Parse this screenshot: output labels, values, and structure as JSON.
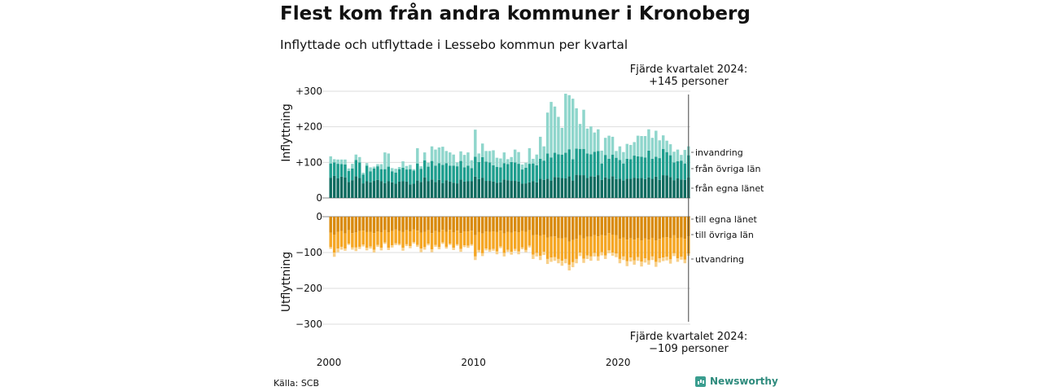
{
  "title": "Flest kom från andra kommuner i Kronoberg",
  "subtitle": "Inflyttade och utflyttade i Lessebo kommun per kvartal",
  "source": "Källa: SCB",
  "brand": "Newsworthy",
  "colors": {
    "in_egna": "#0d6b5f",
    "in_ovriga": "#1e9e8e",
    "in_invandring": "#8fd6cc",
    "out_egna": "#d98a0c",
    "out_ovriga": "#f5a623",
    "out_utvandring": "#f8d08a"
  },
  "chart_data": {
    "type": "bar",
    "stacked": true,
    "x_unit": "kvartal",
    "x_ticks": [
      "2000",
      "2010",
      "2020"
    ],
    "x_range": [
      "2000 Q1",
      "2024 Q4"
    ],
    "panels": [
      {
        "ylabel": "Inflyttning",
        "yticks": [
          "+300",
          "+200",
          "+100",
          "0"
        ],
        "ylim": [
          0,
          300
        ],
        "annotation_line1": "Fjärde kvartalet 2024:",
        "annotation_line2": "+145 personer",
        "last_value": 145,
        "series": [
          {
            "name": "från egna länet",
            "values": [
              57,
              62,
              55,
              60,
              58,
              45,
              50,
              61,
              56,
              41,
              47,
              44,
              48,
              51,
              47,
              42,
              47,
              44,
              40,
              46,
              47,
              46,
              38,
              40,
              49,
              45,
              58,
              47,
              52,
              45,
              51,
              42,
              50,
              46,
              43,
              41,
              52,
              46,
              47,
              47,
              60,
              53,
              57,
              48,
              48,
              46,
              43,
              44,
              52,
              50,
              48,
              48,
              46,
              40,
              41,
              44,
              47,
              44,
              54,
              51,
              54,
              49,
              59,
              58,
              56,
              55,
              61,
              49,
              65,
              64,
              64,
              56,
              61,
              60,
              64,
              51,
              58,
              54,
              61,
              53,
              54,
              49,
              54,
              54,
              57,
              55,
              56,
              53,
              58,
              54,
              60,
              51,
              64,
              63,
              59,
              50,
              55,
              52,
              51,
              58
            ]
          },
          {
            "name": "från övriga län",
            "values": [
              40,
              38,
              41,
              35,
              36,
              31,
              33,
              46,
              44,
              25,
              44,
              31,
              35,
              38,
              34,
              39,
              41,
              31,
              31,
              35,
              38,
              34,
              43,
              37,
              48,
              37,
              48,
              41,
              52,
              46,
              47,
              51,
              48,
              45,
              48,
              48,
              52,
              40,
              44,
              37,
              56,
              48,
              58,
              54,
              52,
              46,
              44,
              42,
              46,
              45,
              53,
              52,
              50,
              40,
              44,
              52,
              50,
              48,
              56,
              54,
              71,
              65,
              68,
              65,
              66,
              72,
              76,
              60,
              74,
              74,
              74,
              69,
              62,
              70,
              68,
              46,
              63,
              56,
              61,
              60,
              53,
              48,
              56,
              55,
              62,
              62,
              60,
              61,
              75,
              56,
              56,
              61,
              74,
              66,
              61,
              50,
              48,
              53,
              46,
              62
            ]
          },
          {
            "name": "invandring",
            "values": [
              20,
              9,
              12,
              13,
              14,
              7,
              13,
              15,
              15,
              5,
              7,
              11,
              5,
              6,
              14,
              47,
              37,
              9,
              11,
              6,
              18,
              10,
              12,
              4,
              43,
              7,
              22,
              11,
              41,
              45,
              44,
              51,
              34,
              37,
              31,
              11,
              27,
              35,
              37,
              22,
              76,
              24,
              38,
              30,
              32,
              42,
              26,
              25,
              30,
              14,
              14,
              36,
              33,
              14,
              14,
              44,
              13,
              30,
              62,
              40,
              115,
              156,
              130,
              105,
              75,
              166,
              152,
              170,
              113,
              70,
              110,
              70,
              78,
              54,
              61,
              36,
              48,
              65,
              50,
              19,
              38,
              32,
              42,
              40,
              38,
              58,
              58,
              60,
              60,
              59,
              73,
              50,
              38,
              32,
              31,
              30,
              33,
              16,
              38,
              25
            ]
          }
        ]
      },
      {
        "ylabel": "Utflyttning",
        "yticks": [
          "0",
          "−100",
          "−200",
          "−300"
        ],
        "ylim": [
          -300,
          0
        ],
        "annotation_line1": "Fjärde kvartalet 2024:",
        "annotation_line2": "−109 personer",
        "last_value": -109,
        "series": [
          {
            "name": "till egna länet",
            "values": [
              -45,
              -50,
              -42,
              -40,
              -47,
              -38,
              -46,
              -44,
              -40,
              -39,
              -43,
              -42,
              -46,
              -41,
              -44,
              -38,
              -44,
              -40,
              -36,
              -40,
              -43,
              -38,
              -41,
              -36,
              -39,
              -45,
              -42,
              -38,
              -46,
              -40,
              -43,
              -37,
              -42,
              -37,
              -44,
              -39,
              -46,
              -41,
              -41,
              -39,
              -51,
              -43,
              -47,
              -41,
              -42,
              -41,
              -43,
              -39,
              -47,
              -42,
              -45,
              -41,
              -44,
              -40,
              -42,
              -38,
              -52,
              -50,
              -54,
              -50,
              -58,
              -56,
              -55,
              -60,
              -61,
              -58,
              -70,
              -65,
              -62,
              -52,
              -61,
              -56,
              -56,
              -51,
              -55,
              -51,
              -53,
              -46,
              -50,
              -52,
              -62,
              -58,
              -64,
              -60,
              -64,
              -60,
              -66,
              -61,
              -64,
              -59,
              -66,
              -62,
              -58,
              -57,
              -60,
              -52,
              -60,
              -58,
              -62,
              -55
            ]
          },
          {
            "name": "till övriga län",
            "values": [
              -40,
              -50,
              -47,
              -44,
              -42,
              -37,
              -40,
              -42,
              -44,
              -39,
              -44,
              -41,
              -46,
              -38,
              -43,
              -34,
              -43,
              -40,
              -38,
              -36,
              -44,
              -39,
              -41,
              -35,
              -40,
              -44,
              -43,
              -37,
              -45,
              -39,
              -42,
              -35,
              -42,
              -38,
              -43,
              -38,
              -44,
              -39,
              -40,
              -38,
              -60,
              -50,
              -55,
              -48,
              -50,
              -49,
              -54,
              -44,
              -54,
              -50,
              -53,
              -49,
              -53,
              -46,
              -51,
              -43,
              -54,
              -51,
              -55,
              -48,
              -60,
              -58,
              -58,
              -58,
              -62,
              -60,
              -64,
              -62,
              -56,
              -48,
              -56,
              -52,
              -55,
              -50,
              -56,
              -48,
              -55,
              -48,
              -50,
              -51,
              -56,
              -53,
              -60,
              -54,
              -58,
              -53,
              -59,
              -55,
              -58,
              -52,
              -60,
              -54,
              -56,
              -55,
              -59,
              -50,
              -56,
              -54,
              -58,
              -48
            ]
          },
          {
            "name": "utvandring",
            "values": [
              -5,
              -12,
              -10,
              -8,
              -6,
              -4,
              -6,
              -10,
              -6,
              -5,
              -7,
              -6,
              -8,
              -5,
              -7,
              -4,
              -6,
              -6,
              -5,
              -4,
              -8,
              -5,
              -6,
              -4,
              -5,
              -10,
              -7,
              -5,
              -8,
              -5,
              -6,
              -4,
              -5,
              -4,
              -6,
              -4,
              -8,
              -5,
              -6,
              -4,
              -10,
              -6,
              -8,
              -5,
              -6,
              -5,
              -8,
              -5,
              -10,
              -6,
              -8,
              -6,
              -8,
              -5,
              -6,
              -5,
              -12,
              -10,
              -12,
              -9,
              -14,
              -12,
              -10,
              -12,
              -14,
              -12,
              -16,
              -14,
              -12,
              -10,
              -12,
              -10,
              -12,
              -10,
              -12,
              -9,
              -10,
              -8,
              -9,
              -10,
              -12,
              -10,
              -14,
              -11,
              -12,
              -10,
              -14,
              -12,
              -12,
              -10,
              -14,
              -12,
              -10,
              -10,
              -12,
              -8,
              -10,
              -8,
              -10,
              -6
            ]
          }
        ]
      }
    ],
    "legend_position": "right"
  }
}
